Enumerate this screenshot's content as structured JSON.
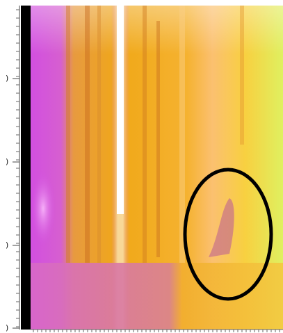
{
  "axis": {
    "y_tick_labels": [
      ")",
      ")",
      ")",
      ")"
    ]
  }
}
